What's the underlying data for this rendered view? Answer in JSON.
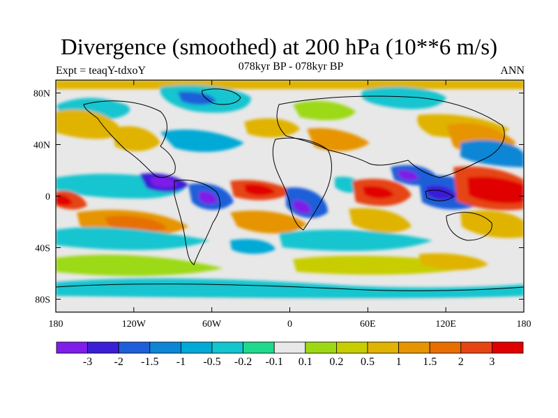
{
  "chart_data": {
    "type": "heatmap",
    "title": "Divergence (smoothed) at 200 hPa (10**6 m/s)",
    "subtitle": "078kyr BP - 078kyr BP",
    "left_label": "Expt = teaqY-tdxoY",
    "right_label": "ANN",
    "x_ticks": [
      "180",
      "120W",
      "60W",
      "0",
      "60E",
      "120E",
      "180"
    ],
    "x_tick_values": [
      -180,
      -120,
      -60,
      0,
      60,
      120,
      180
    ],
    "y_ticks": [
      "80N",
      "40N",
      "0",
      "40S",
      "80S"
    ],
    "y_tick_values": [
      80,
      40,
      0,
      -40,
      -80
    ],
    "xlim": [
      -180,
      180
    ],
    "ylim": [
      -90,
      90
    ],
    "colorbar": {
      "labels": [
        "-3",
        "-2",
        "-1.5",
        "-1",
        "-0.5",
        "-0.2",
        "-0.1",
        "0.1",
        "0.2",
        "0.5",
        "1",
        "1.5",
        "2",
        "3"
      ],
      "colors": [
        "#7f1ee8",
        "#3a1fd6",
        "#1f5ed9",
        "#0d86d6",
        "#00a9d6",
        "#12c5cf",
        "#1fd98c",
        "#e8e8e8",
        "#9cd914",
        "#c8cd00",
        "#e0b300",
        "#e69400",
        "#e66f00",
        "#e64513",
        "#e00000"
      ]
    },
    "features": [
      {
        "name": "Strong convergence over eastern tropical Pacific",
        "lon": -95,
        "lat": 8,
        "level": -3
      },
      {
        "name": "Strong convergence over northern South America",
        "lon": -65,
        "lat": -1,
        "level": -3
      },
      {
        "name": "Strong convergence over tropical Africa",
        "lon": 8,
        "lat": -10,
        "level": -3
      },
      {
        "name": "Strong convergence over Bay of Bengal",
        "lon": 88,
        "lat": 12,
        "level": -3
      },
      {
        "name": "Strong convergence over Maritime Continent",
        "lon": 115,
        "lat": -7,
        "level": -3
      },
      {
        "name": "Strong divergence over western Pacific warm pool",
        "lon": 150,
        "lat": 2,
        "level": 3
      },
      {
        "name": "Strong divergence over central Pacific",
        "lon": -170,
        "lat": -3,
        "level": 3
      },
      {
        "name": "Strong divergence over equatorial Atlantic",
        "lon": -20,
        "lat": 3,
        "level": 3
      },
      {
        "name": "Divergence over Indian Ocean",
        "lon": 75,
        "lat": 3,
        "level": 3
      },
      {
        "name": "Divergence band in South Pacific",
        "lon": -130,
        "lat": -25,
        "level": 2
      },
      {
        "name": "Divergence over South Atlantic",
        "lon": -10,
        "lat": -25,
        "level": 2
      }
    ]
  }
}
